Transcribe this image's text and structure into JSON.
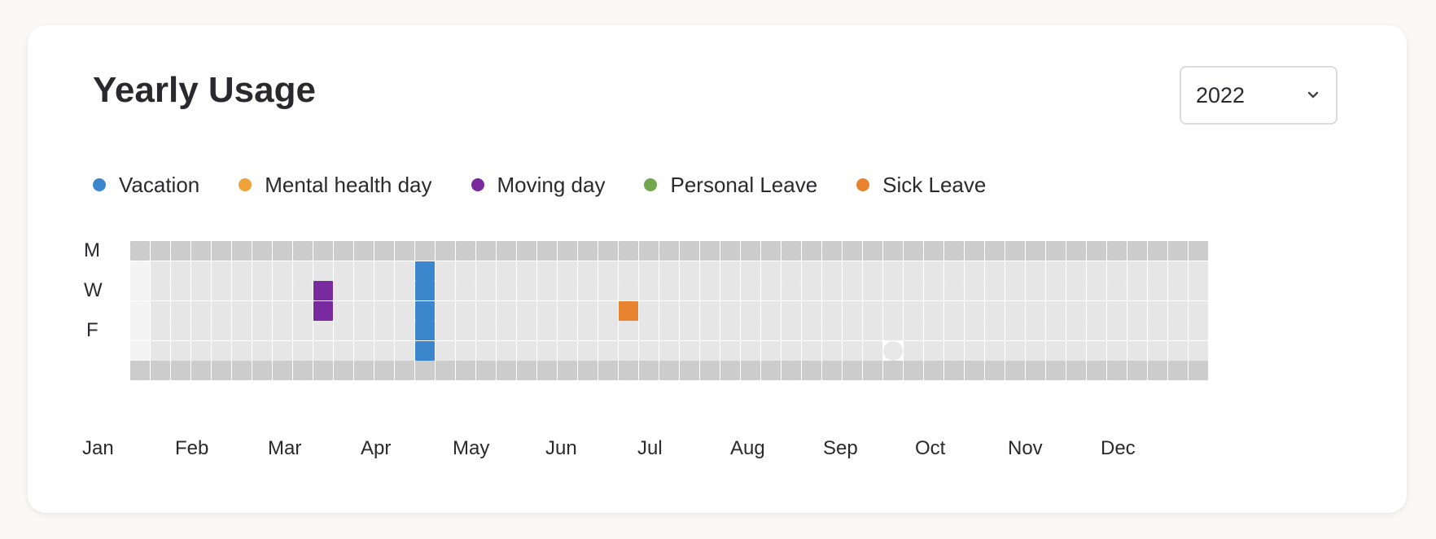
{
  "title": "Yearly Usage",
  "year_select": {
    "value": "2022",
    "icon": "chevron-down-icon"
  },
  "legend": [
    {
      "label": "Vacation",
      "color": "#3b86cc"
    },
    {
      "label": "Mental health day",
      "color": "#f0a23a"
    },
    {
      "label": "Moving day",
      "color": "#7a2a9f"
    },
    {
      "label": "Personal Leave",
      "color": "#72a74d"
    },
    {
      "label": "Sick Leave",
      "color": "#e8842f"
    }
  ],
  "day_labels": [
    "M",
    "W",
    "F"
  ],
  "months": [
    "Jan",
    "Feb",
    "Mar",
    "Apr",
    "May",
    "Jun",
    "Jul",
    "Aug",
    "Sep",
    "Oct",
    "Nov",
    "Dec"
  ],
  "grid": {
    "weeks": 53,
    "weekday_rows": 7,
    "colors": {
      "weekend": "#cccccc",
      "weekday": "#e6e6e6",
      "outside_year": "#f4f4f4",
      "today_marker": "#e8e8e8"
    },
    "leave_days": [
      {
        "week": 9,
        "day": 2,
        "type": "Moving day"
      },
      {
        "week": 9,
        "day": 3,
        "type": "Moving day"
      },
      {
        "week": 14,
        "day": 1,
        "type": "Vacation"
      },
      {
        "week": 14,
        "day": 2,
        "type": "Vacation"
      },
      {
        "week": 14,
        "day": 3,
        "type": "Vacation"
      },
      {
        "week": 14,
        "day": 4,
        "type": "Vacation"
      },
      {
        "week": 14,
        "day": 5,
        "type": "Vacation"
      },
      {
        "week": 24,
        "day": 3,
        "type": "Sick Leave"
      }
    ],
    "today": {
      "week": 37,
      "day": 5
    }
  }
}
